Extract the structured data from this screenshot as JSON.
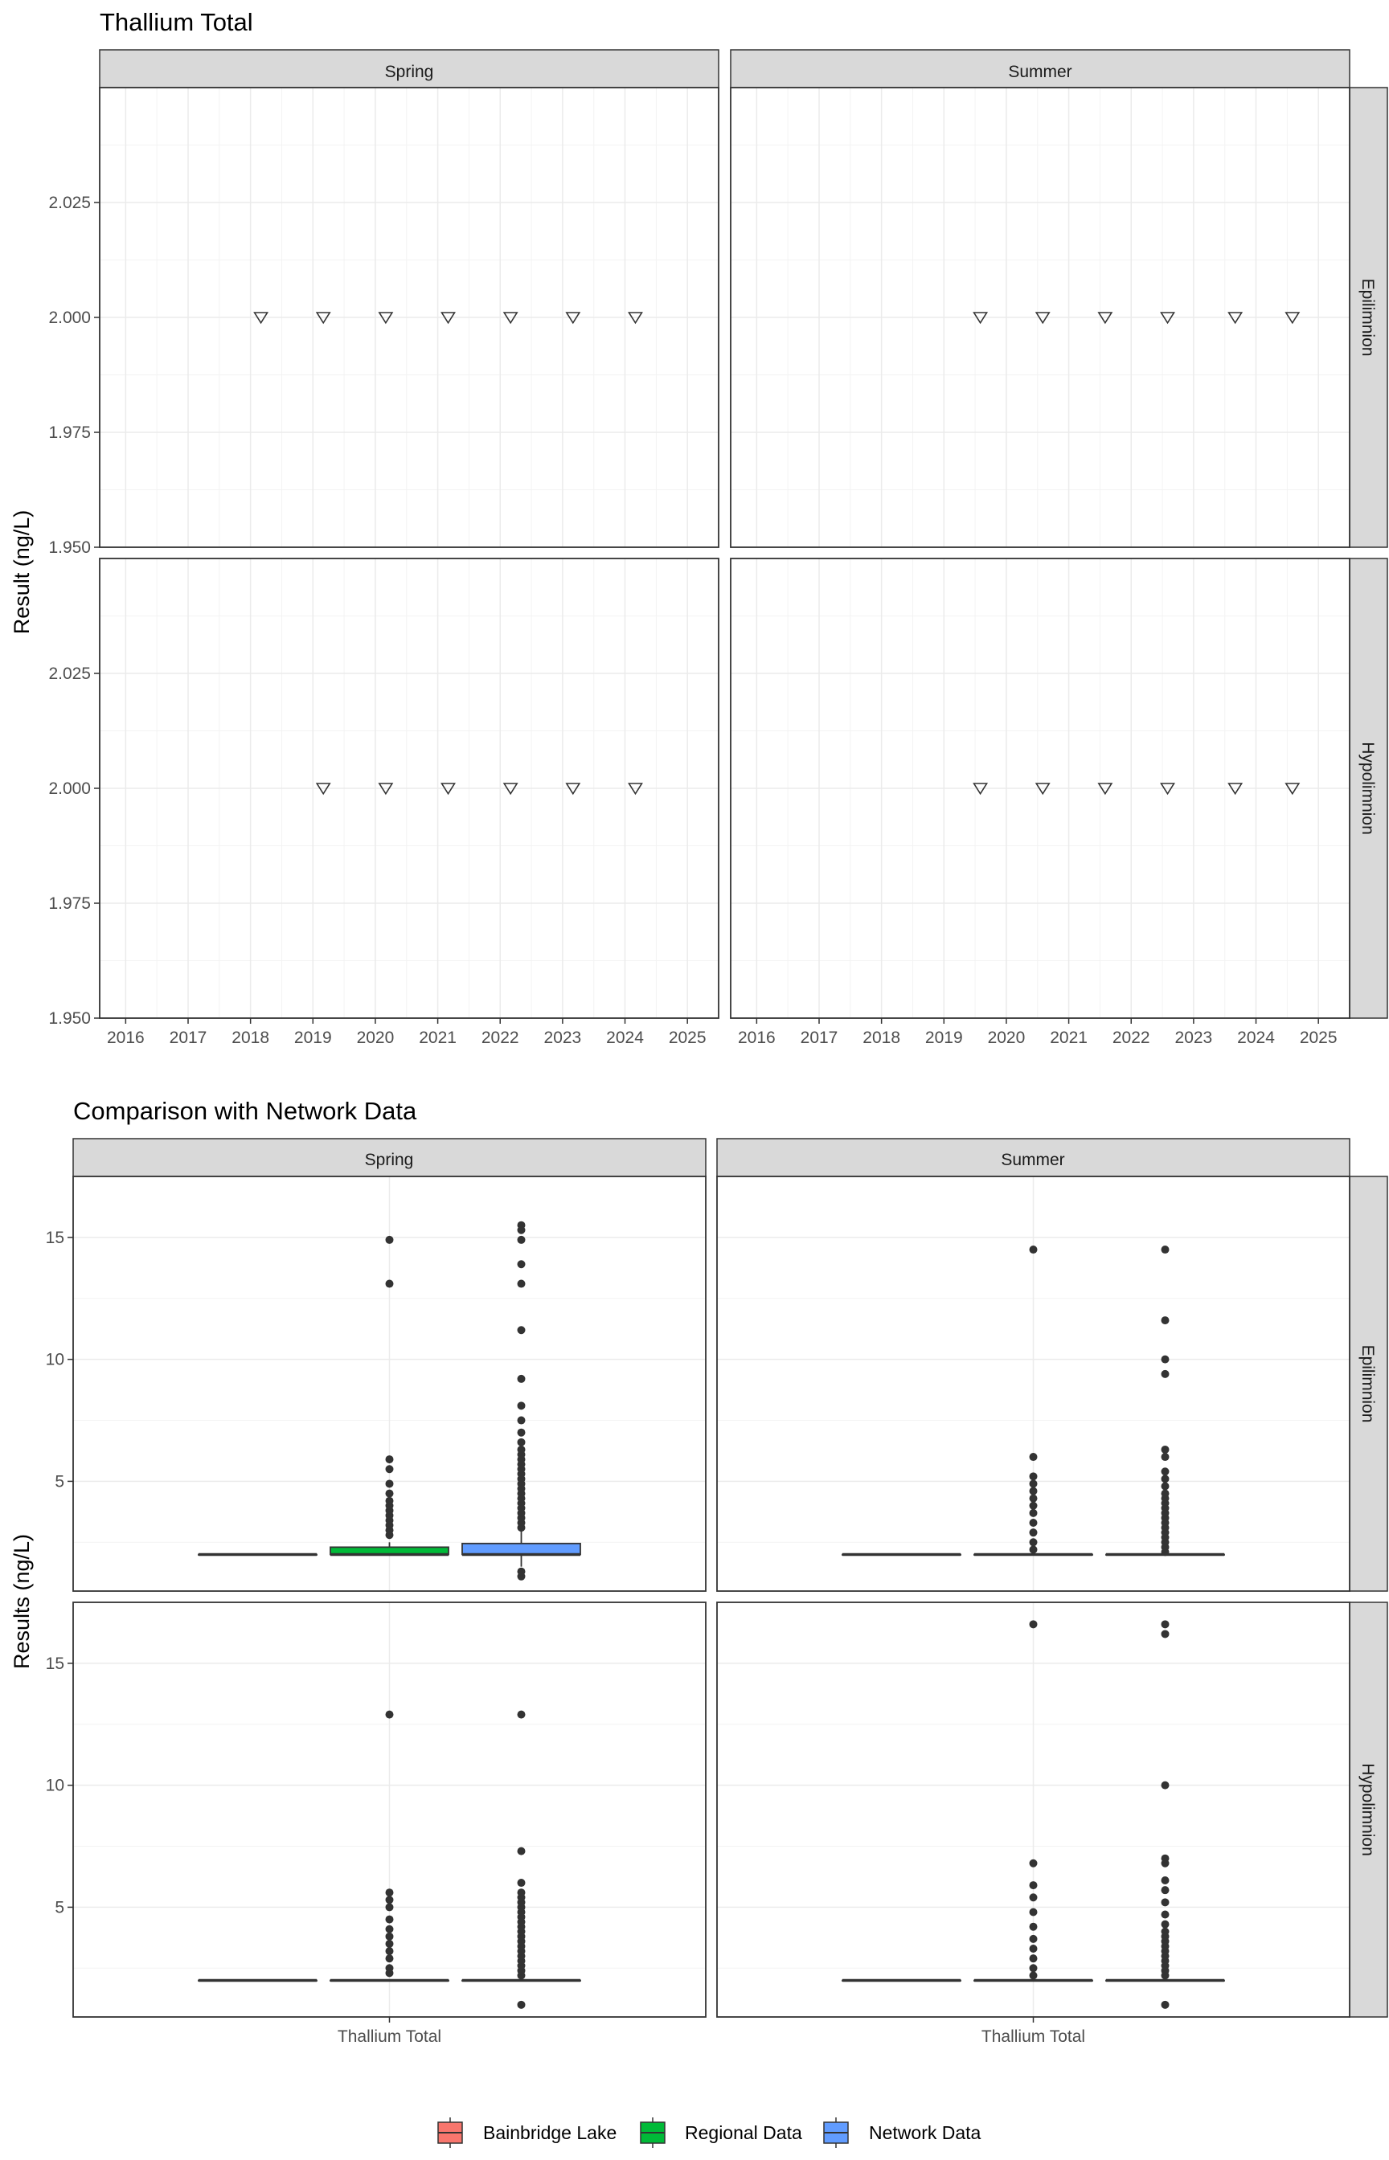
{
  "colors": {
    "panel_border": "#333333",
    "strip_fill": "#d9d9d9",
    "grid_major": "#ebebeb",
    "grid_minor": "#f3f3f3",
    "point": "#333333",
    "bainbridge": "#F8766D",
    "regional": "#00BA38",
    "network": "#619CFF"
  },
  "chart_data": [
    {
      "type": "scatter",
      "title": "Thallium Total",
      "ylabel": "Result (ng/L)",
      "xlabel": "",
      "marker": "open-down-triangle",
      "x_ticks": [
        "2016",
        "2017",
        "2018",
        "2019",
        "2020",
        "2021",
        "2022",
        "2023",
        "2024",
        "2025"
      ],
      "xlim": [
        "2015-08",
        "2025-07"
      ],
      "y_ticks": [
        "1.950",
        "1.975",
        "2.000",
        "2.025"
      ],
      "ylim": [
        1.95,
        2.05
      ],
      "facet_columns": [
        "Spring",
        "Summer"
      ],
      "facet_rows": [
        "Epilimnion",
        "Hypolimnion"
      ],
      "grid": true,
      "panels": [
        {
          "column": "Spring",
          "row": "Epilimnion",
          "points": [
            {
              "x": "2018-03",
              "y": 2.0
            },
            {
              "x": "2019-03",
              "y": 2.0
            },
            {
              "x": "2020-03",
              "y": 2.0
            },
            {
              "x": "2021-03",
              "y": 2.0
            },
            {
              "x": "2022-03",
              "y": 2.0
            },
            {
              "x": "2023-03",
              "y": 2.0
            },
            {
              "x": "2024-03",
              "y": 2.0
            }
          ]
        },
        {
          "column": "Summer",
          "row": "Epilimnion",
          "points": [
            {
              "x": "2019-08",
              "y": 2.0
            },
            {
              "x": "2020-08",
              "y": 2.0
            },
            {
              "x": "2021-08",
              "y": 2.0
            },
            {
              "x": "2022-08",
              "y": 2.0
            },
            {
              "x": "2023-09",
              "y": 2.0
            },
            {
              "x": "2024-08",
              "y": 2.0
            }
          ]
        },
        {
          "column": "Spring",
          "row": "Hypolimnion",
          "points": [
            {
              "x": "2019-03",
              "y": 2.0
            },
            {
              "x": "2020-03",
              "y": 2.0
            },
            {
              "x": "2021-03",
              "y": 2.0
            },
            {
              "x": "2022-03",
              "y": 2.0
            },
            {
              "x": "2023-03",
              "y": 2.0
            },
            {
              "x": "2024-03",
              "y": 2.0
            }
          ]
        },
        {
          "column": "Summer",
          "row": "Hypolimnion",
          "points": [
            {
              "x": "2019-08",
              "y": 2.0
            },
            {
              "x": "2020-08",
              "y": 2.0
            },
            {
              "x": "2021-08",
              "y": 2.0
            },
            {
              "x": "2022-08",
              "y": 2.0
            },
            {
              "x": "2023-09",
              "y": 2.0
            },
            {
              "x": "2024-08",
              "y": 2.0
            }
          ]
        }
      ]
    },
    {
      "type": "box",
      "title": "Comparison with Network Data",
      "ylabel": "Results (ng/L)",
      "xlabel": "",
      "x_categories": [
        "Thallium Total"
      ],
      "y_ticks": [
        "5",
        "10",
        "15"
      ],
      "ylim": [
        0.5,
        17.5
      ],
      "facet_columns": [
        "Spring",
        "Summer"
      ],
      "facet_rows": [
        "Epilimnion",
        "Hypolimnion"
      ],
      "grid": true,
      "legend": {
        "position": "bottom",
        "entries": [
          {
            "label": "Bainbridge Lake",
            "color": "#F8766D"
          },
          {
            "label": "Regional Data",
            "color": "#00BA38"
          },
          {
            "label": "Network Data",
            "color": "#619CFF"
          }
        ]
      },
      "panels": [
        {
          "column": "Spring",
          "row": "Epilimnion",
          "boxes": [
            {
              "series": "Bainbridge Lake",
              "q1": 2.0,
              "median": 2.0,
              "q3": 2.0,
              "whisker_low": 2.0,
              "whisker_high": 2.0,
              "outliers": []
            },
            {
              "series": "Regional Data",
              "q1": 2.0,
              "median": 2.0,
              "q3": 2.3,
              "whisker_low": 2.0,
              "whisker_high": 2.5,
              "outliers": [
                2.8,
                3.0,
                3.2,
                3.4,
                3.6,
                3.8,
                4.0,
                4.2,
                4.5,
                4.9,
                5.5,
                5.9,
                13.1,
                14.9
              ]
            },
            {
              "series": "Network Data",
              "q1": 2.0,
              "median": 2.0,
              "q3": 2.45,
              "whisker_low": 1.5,
              "whisker_high": 3.0,
              "outliers": [
                1.1,
                1.3,
                3.1,
                3.3,
                3.5,
                3.7,
                3.9,
                4.1,
                4.3,
                4.5,
                4.7,
                4.9,
                5.1,
                5.3,
                5.5,
                5.7,
                5.9,
                6.1,
                6.3,
                6.6,
                7.0,
                7.5,
                8.1,
                9.2,
                11.2,
                13.1,
                13.9,
                14.9,
                15.3,
                15.5
              ]
            }
          ]
        },
        {
          "column": "Summer",
          "row": "Epilimnion",
          "boxes": [
            {
              "series": "Bainbridge Lake",
              "q1": 2.0,
              "median": 2.0,
              "q3": 2.0,
              "whisker_low": 2.0,
              "whisker_high": 2.0,
              "outliers": []
            },
            {
              "series": "Regional Data",
              "q1": 2.0,
              "median": 2.0,
              "q3": 2.0,
              "whisker_low": 2.0,
              "whisker_high": 2.0,
              "outliers": [
                2.2,
                2.5,
                2.9,
                3.3,
                3.7,
                4.0,
                4.3,
                4.6,
                4.9,
                5.2,
                6.0,
                14.5
              ]
            },
            {
              "series": "Network Data",
              "q1": 2.0,
              "median": 2.0,
              "q3": 2.0,
              "whisker_low": 2.0,
              "whisker_high": 2.0,
              "outliers": [
                2.1,
                2.3,
                2.5,
                2.7,
                2.9,
                3.1,
                3.3,
                3.5,
                3.7,
                3.9,
                4.1,
                4.3,
                4.5,
                4.8,
                5.1,
                5.4,
                6.0,
                6.3,
                9.4,
                10.0,
                11.6,
                14.5
              ]
            }
          ]
        },
        {
          "column": "Spring",
          "row": "Hypolimnion",
          "boxes": [
            {
              "series": "Bainbridge Lake",
              "q1": 2.0,
              "median": 2.0,
              "q3": 2.0,
              "whisker_low": 2.0,
              "whisker_high": 2.0,
              "outliers": []
            },
            {
              "series": "Regional Data",
              "q1": 2.0,
              "median": 2.0,
              "q3": 2.0,
              "whisker_low": 2.0,
              "whisker_high": 2.0,
              "outliers": [
                2.3,
                2.5,
                2.9,
                3.2,
                3.5,
                3.8,
                4.1,
                4.5,
                5.0,
                5.3,
                5.6,
                12.9
              ]
            },
            {
              "series": "Network Data",
              "q1": 2.0,
              "median": 2.0,
              "q3": 2.0,
              "whisker_low": 2.0,
              "whisker_high": 2.0,
              "outliers": [
                1.0,
                2.2,
                2.4,
                2.6,
                2.8,
                3.0,
                3.2,
                3.4,
                3.6,
                3.8,
                4.0,
                4.2,
                4.4,
                4.6,
                4.8,
                5.0,
                5.2,
                5.4,
                5.6,
                6.0,
                7.3,
                12.9
              ]
            }
          ]
        },
        {
          "column": "Summer",
          "row": "Hypolimnion",
          "boxes": [
            {
              "series": "Bainbridge Lake",
              "q1": 2.0,
              "median": 2.0,
              "q3": 2.0,
              "whisker_low": 2.0,
              "whisker_high": 2.0,
              "outliers": []
            },
            {
              "series": "Regional Data",
              "q1": 2.0,
              "median": 2.0,
              "q3": 2.0,
              "whisker_low": 2.0,
              "whisker_high": 2.0,
              "outliers": [
                2.2,
                2.5,
                2.9,
                3.3,
                3.7,
                4.2,
                4.8,
                5.4,
                5.9,
                6.8,
                16.6
              ]
            },
            {
              "series": "Network Data",
              "q1": 2.0,
              "median": 2.0,
              "q3": 2.0,
              "whisker_low": 2.0,
              "whisker_high": 2.0,
              "outliers": [
                1.0,
                2.2,
                2.4,
                2.6,
                2.8,
                3.0,
                3.2,
                3.4,
                3.6,
                3.8,
                4.0,
                4.3,
                4.7,
                5.2,
                5.7,
                6.1,
                6.8,
                7.0,
                10.0,
                16.2,
                16.6
              ]
            }
          ]
        }
      ]
    }
  ]
}
